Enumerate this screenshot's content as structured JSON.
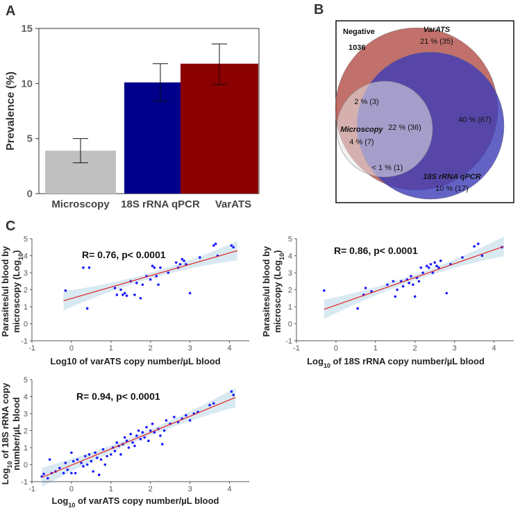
{
  "panel_labels": {
    "a": "A",
    "b": "B",
    "c": "C"
  },
  "chart_data": [
    {
      "id": "panelA",
      "type": "bar",
      "ylabel": "Prevalence (%)",
      "ylim": [
        0,
        15
      ],
      "yticks": [
        0,
        5,
        10,
        15
      ],
      "categories": [
        "Microscopy",
        "18S rRNA qPCR",
        "VarATS"
      ],
      "values": [
        3.9,
        10.1,
        11.8
      ],
      "error_low": [
        2.8,
        8.4,
        9.9
      ],
      "error_high": [
        5.0,
        11.8,
        13.6
      ],
      "colors": [
        "#c0c0c0",
        "#00008b",
        "#8b0000"
      ]
    },
    {
      "id": "panelB",
      "type": "venn",
      "negative_label": "Negative",
      "negative_count": "1036",
      "sets": [
        {
          "name": "VarATS",
          "color": "#b94a48"
        },
        {
          "name": "18S rRNA qPCR",
          "color": "#3b3bb3"
        },
        {
          "name": "Microscopy",
          "color": "#dcdcdc"
        }
      ],
      "regions": [
        {
          "label": "21 % (35)",
          "sets": [
            "VarATS"
          ]
        },
        {
          "label": "40 % (67)",
          "sets": [
            "VarATS",
            "18S rRNA qPCR"
          ]
        },
        {
          "label": "22 % (36)",
          "sets": [
            "VarATS",
            "18S rRNA qPCR",
            "Microscopy"
          ]
        },
        {
          "label": "2 % (3)",
          "sets": [
            "VarATS",
            "Microscopy"
          ]
        },
        {
          "label": "4 % (7)",
          "sets": [
            "Microscopy"
          ]
        },
        {
          "label": "< 1 % (1)",
          "sets": [
            "18S rRNA qPCR",
            "Microscopy"
          ]
        },
        {
          "label": "10 % (17)",
          "sets": [
            "18S rRNA qPCR"
          ]
        }
      ]
    },
    {
      "id": "c1",
      "type": "scatter",
      "xlabel": "Log10 of varATS copy number/µL blood",
      "ylabel_line1": "Parasites/ul blood by",
      "ylabel_line2": "microscopy (Log",
      "ylabel_sub": "10",
      "ylabel_end": ")",
      "annotation": "R= 0.76, p< 0.0001",
      "xlim": [
        -1,
        4.5
      ],
      "ylim": [
        -1,
        5
      ],
      "xticks": [
        -1,
        0,
        1,
        2,
        3,
        4
      ],
      "yticks": [
        -1,
        0,
        1,
        2,
        3,
        4,
        5
      ],
      "fit": {
        "x0": -0.2,
        "y0": 1.35,
        "x1": 4.2,
        "y1": 4.3
      },
      "points": [
        [
          -0.15,
          1.95
        ],
        [
          0.3,
          3.3
        ],
        [
          0.45,
          3.3
        ],
        [
          0.4,
          0.9
        ],
        [
          1.1,
          2.1
        ],
        [
          1.15,
          1.7
        ],
        [
          1.25,
          2.0
        ],
        [
          1.3,
          1.7
        ],
        [
          1.35,
          1.8
        ],
        [
          1.4,
          1.65
        ],
        [
          1.5,
          2.5
        ],
        [
          1.6,
          1.7
        ],
        [
          1.65,
          2.4
        ],
        [
          1.75,
          1.5
        ],
        [
          1.8,
          2.3
        ],
        [
          1.9,
          2.8
        ],
        [
          2.0,
          2.6
        ],
        [
          2.05,
          3.4
        ],
        [
          2.1,
          3.3
        ],
        [
          2.15,
          2.8
        ],
        [
          2.2,
          2.3
        ],
        [
          2.25,
          3.3
        ],
        [
          2.45,
          3.0
        ],
        [
          2.65,
          3.6
        ],
        [
          2.7,
          3.3
        ],
        [
          2.75,
          3.5
        ],
        [
          2.8,
          3.8
        ],
        [
          2.85,
          3.7
        ],
        [
          2.9,
          3.5
        ],
        [
          3.0,
          1.8
        ],
        [
          3.25,
          3.9
        ],
        [
          3.6,
          4.6
        ],
        [
          3.65,
          4.7
        ],
        [
          3.7,
          4.0
        ],
        [
          4.05,
          4.6
        ],
        [
          4.1,
          4.5
        ]
      ]
    },
    {
      "id": "c2",
      "type": "scatter",
      "xlabel_pre": "Log",
      "xlabel_sub": "10",
      "xlabel_post": " of 18S rRNA copy number/µL blood",
      "ylabel_line1": "Parasites/ul blood by",
      "ylabel_line2": "microscopy (Log",
      "ylabel_sub": "10",
      "ylabel_end": ")",
      "annotation": "R= 0.86, p< 0.0001",
      "xlim": [
        -1,
        4.5
      ],
      "ylim": [
        -1,
        5
      ],
      "xticks": [
        -1,
        0,
        1,
        2,
        3,
        4
      ],
      "yticks": [
        -1,
        0,
        1,
        2,
        3,
        4,
        5
      ],
      "fit": {
        "x0": -0.3,
        "y0": 0.85,
        "x1": 4.25,
        "y1": 4.55
      },
      "points": [
        [
          -0.3,
          1.95
        ],
        [
          0.55,
          0.9
        ],
        [
          0.7,
          1.7
        ],
        [
          0.75,
          2.1
        ],
        [
          0.9,
          1.9
        ],
        [
          1.3,
          2.3
        ],
        [
          1.45,
          2.5
        ],
        [
          1.5,
          1.6
        ],
        [
          1.55,
          2.0
        ],
        [
          1.65,
          2.5
        ],
        [
          1.7,
          2.2
        ],
        [
          1.8,
          2.6
        ],
        [
          1.85,
          2.4
        ],
        [
          1.9,
          2.8
        ],
        [
          1.95,
          2.3
        ],
        [
          2.0,
          1.6
        ],
        [
          2.05,
          2.7
        ],
        [
          2.1,
          2.5
        ],
        [
          2.15,
          3.3
        ],
        [
          2.2,
          3.0
        ],
        [
          2.3,
          3.4
        ],
        [
          2.35,
          3.3
        ],
        [
          2.4,
          3.5
        ],
        [
          2.45,
          3.0
        ],
        [
          2.5,
          3.6
        ],
        [
          2.55,
          3.4
        ],
        [
          2.6,
          3.3
        ],
        [
          2.65,
          3.7
        ],
        [
          2.8,
          1.8
        ],
        [
          2.9,
          3.5
        ],
        [
          3.2,
          3.9
        ],
        [
          3.5,
          4.55
        ],
        [
          3.6,
          4.7
        ],
        [
          3.7,
          4.0
        ],
        [
          4.2,
          4.5
        ]
      ]
    },
    {
      "id": "c3",
      "type": "scatter",
      "xlabel_pre": "Log",
      "xlabel_sub": "10",
      "xlabel_post": " of varATS copy number/µL blood",
      "ylabel_line1_pre": "Log",
      "ylabel_line1_sub": "10",
      "ylabel_line1_post": " of 18S rRNA copy",
      "ylabel_line2": "number/µL blood",
      "annotation": "R= 0.94, p< 0.0001",
      "xlim": [
        -1,
        4.5
      ],
      "ylim": [
        -1,
        5
      ],
      "xticks": [
        -1,
        0,
        1,
        2,
        3,
        4
      ],
      "yticks": [
        -1,
        0,
        1,
        2,
        3,
        4,
        5
      ],
      "fit": {
        "x0": -0.75,
        "y0": -0.75,
        "x1": 4.15,
        "y1": 3.95
      },
      "points": [
        [
          -0.75,
          -0.7
        ],
        [
          -0.7,
          -0.55
        ],
        [
          -0.6,
          -0.8
        ],
        [
          -0.55,
          0.3
        ],
        [
          -0.5,
          -0.5
        ],
        [
          -0.4,
          -0.4
        ],
        [
          -0.3,
          -0.2
        ],
        [
          -0.2,
          -0.5
        ],
        [
          -0.15,
          0.1
        ],
        [
          -0.1,
          -0.3
        ],
        [
          0.0,
          -0.5
        ],
        [
          0.0,
          0.7
        ],
        [
          0.05,
          0.2
        ],
        [
          0.1,
          -0.5
        ],
        [
          0.15,
          0.3
        ],
        [
          0.25,
          0.1
        ],
        [
          0.3,
          -0.1
        ],
        [
          0.35,
          0.5
        ],
        [
          0.4,
          0.0
        ],
        [
          0.45,
          0.6
        ],
        [
          0.5,
          0.2
        ],
        [
          0.55,
          -0.4
        ],
        [
          0.6,
          0.7
        ],
        [
          0.65,
          0.4
        ],
        [
          0.7,
          -0.6
        ],
        [
          0.75,
          0.3
        ],
        [
          0.8,
          0.9
        ],
        [
          0.85,
          0.0
        ],
        [
          0.9,
          0.5
        ],
        [
          1.0,
          0.6
        ],
        [
          1.05,
          1.0
        ],
        [
          1.1,
          0.8
        ],
        [
          1.15,
          1.3
        ],
        [
          1.2,
          1.1
        ],
        [
          1.25,
          0.6
        ],
        [
          1.3,
          1.2
        ],
        [
          1.35,
          1.6
        ],
        [
          1.4,
          1.4
        ],
        [
          1.45,
          1.0
        ],
        [
          1.5,
          1.8
        ],
        [
          1.55,
          1.3
        ],
        [
          1.6,
          1.1
        ],
        [
          1.65,
          1.7
        ],
        [
          1.7,
          2.0
        ],
        [
          1.75,
          1.5
        ],
        [
          1.8,
          1.9
        ],
        [
          1.85,
          1.6
        ],
        [
          1.9,
          2.2
        ],
        [
          1.95,
          1.4
        ],
        [
          2.0,
          2.0
        ],
        [
          2.05,
          2.4
        ],
        [
          2.1,
          1.9
        ],
        [
          2.2,
          2.1
        ],
        [
          2.25,
          1.7
        ],
        [
          2.3,
          1.2
        ],
        [
          2.35,
          2.0
        ],
        [
          2.4,
          2.6
        ],
        [
          2.5,
          2.4
        ],
        [
          2.6,
          2.8
        ],
        [
          2.7,
          2.5
        ],
        [
          2.8,
          2.7
        ],
        [
          2.9,
          2.9
        ],
        [
          3.0,
          2.6
        ],
        [
          3.1,
          3.0
        ],
        [
          3.2,
          3.1
        ],
        [
          3.5,
          3.5
        ],
        [
          3.6,
          3.6
        ],
        [
          4.05,
          4.3
        ],
        [
          4.1,
          4.1
        ]
      ]
    }
  ]
}
